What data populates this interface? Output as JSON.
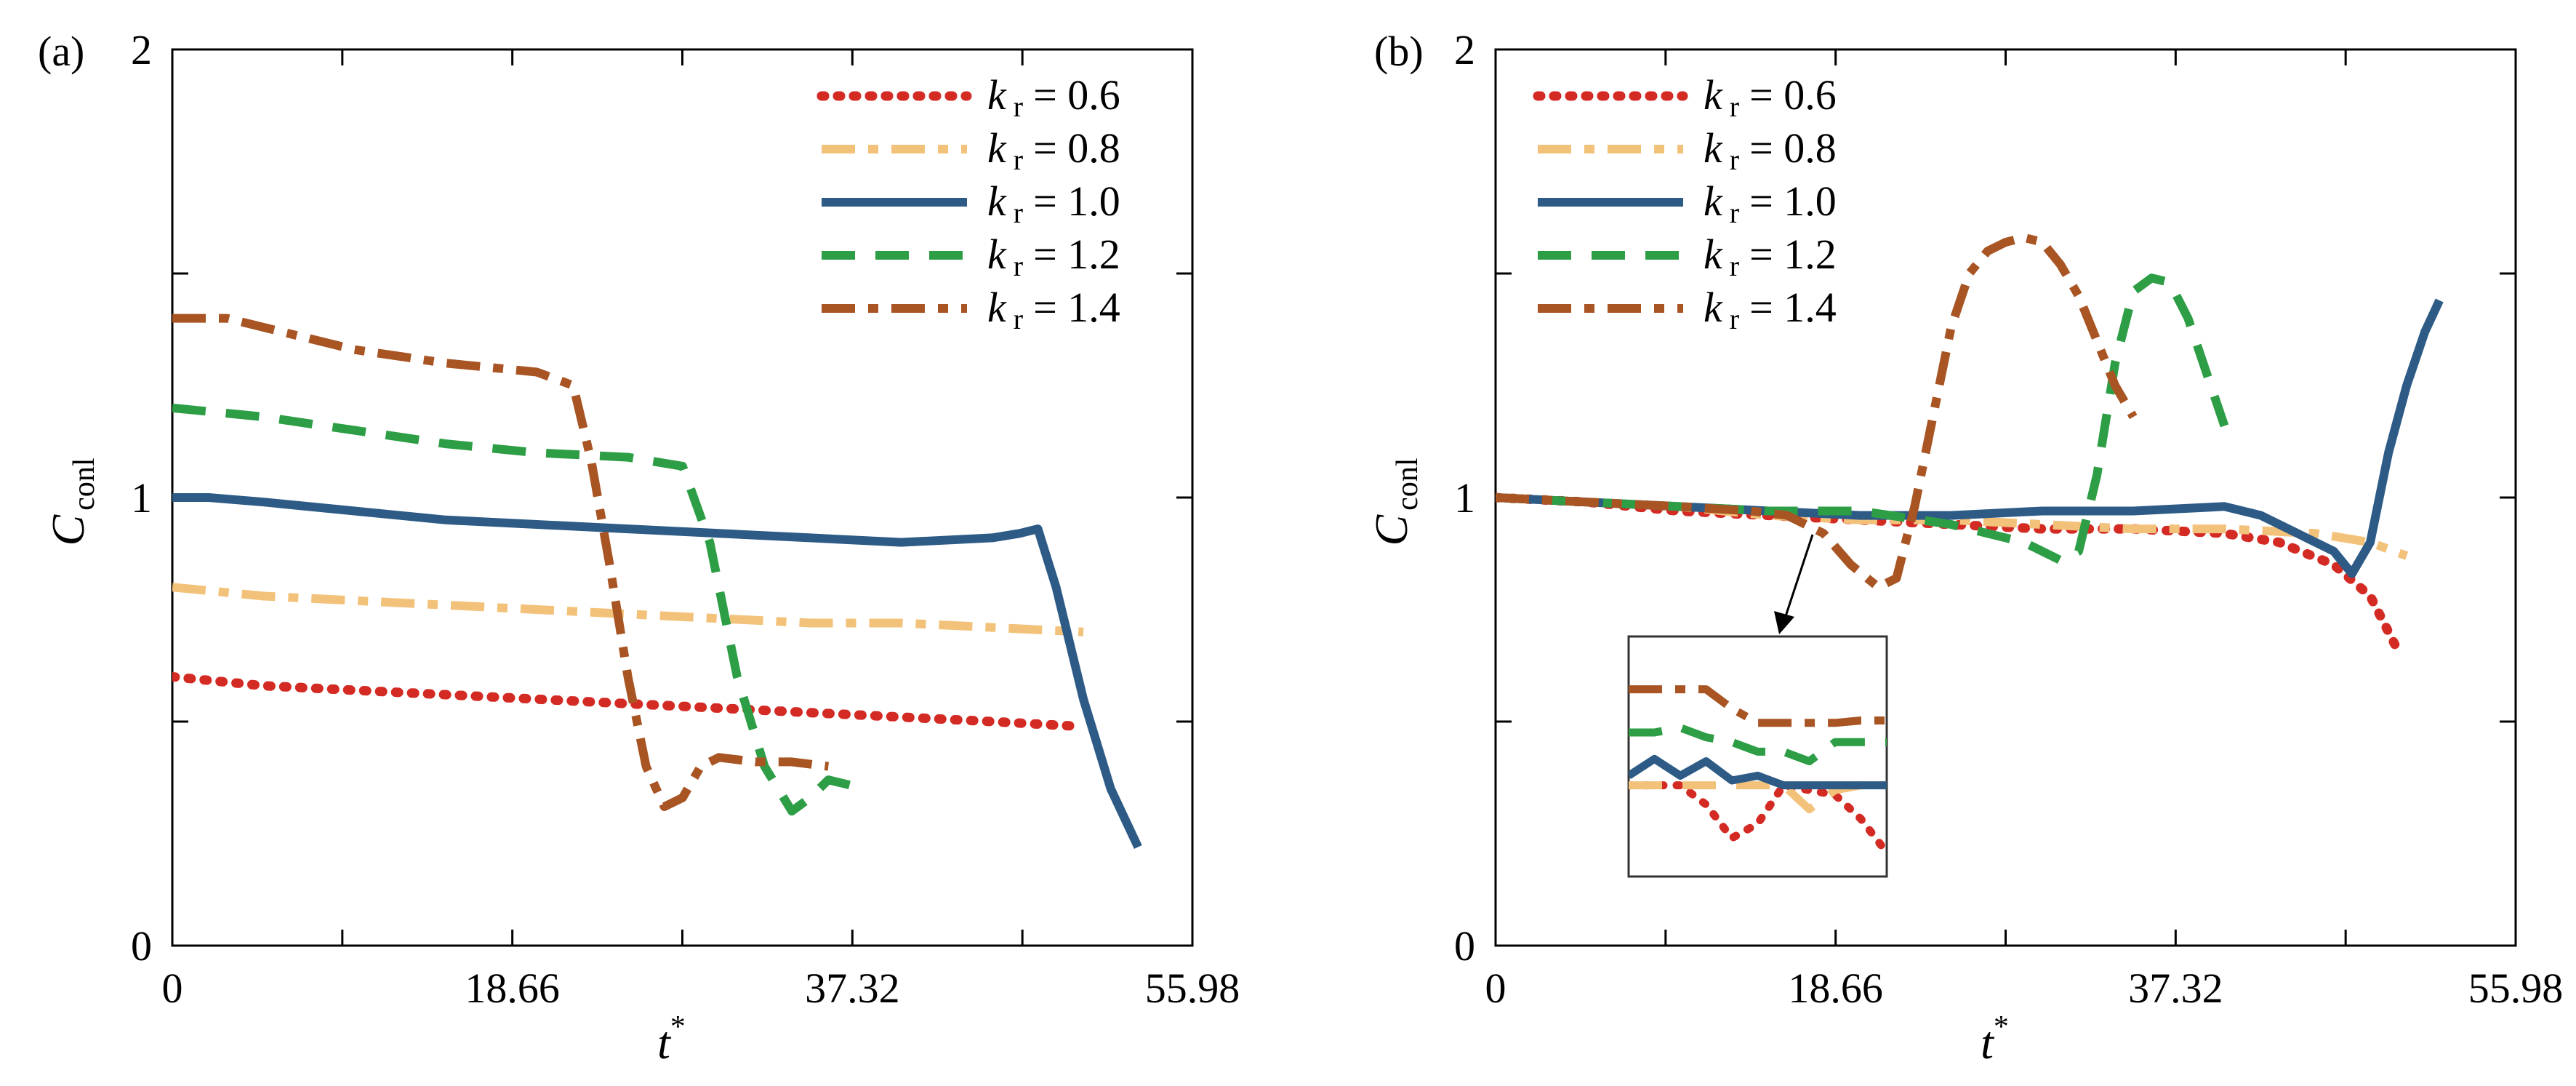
{
  "chart_data": [
    {
      "panel_label": "(a)",
      "type": "line",
      "xlabel": "t",
      "xlabel_sup": "*",
      "ylabel": "C",
      "ylabel_sub": "conl",
      "xlim": [
        0,
        55.98
      ],
      "ylim": [
        0,
        2
      ],
      "xticks": [
        0,
        18.66,
        37.32,
        55.98
      ],
      "xtick_labels": [
        "0",
        "18.66",
        "37.32",
        "55.98"
      ],
      "yticks": [
        0,
        1,
        2
      ],
      "ytick_labels": [
        "0",
        "1",
        "2"
      ],
      "legend_position": "top-right",
      "series": [
        {
          "name": "k r = 0.6",
          "legend": {
            "k": "k",
            "sub": "r",
            "rest": "= 0.6"
          },
          "color": "#d42a24",
          "style": "dotted",
          "x": [
            0,
            5,
            10,
            15,
            20,
            25,
            30,
            35,
            40,
            45,
            49.5
          ],
          "y": [
            0.6,
            0.58,
            0.57,
            0.56,
            0.55,
            0.54,
            0.53,
            0.52,
            0.51,
            0.5,
            0.49
          ]
        },
        {
          "name": "k r = 0.8",
          "legend": {
            "k": "k",
            "sub": "r",
            "rest": "= 0.8"
          },
          "color": "#f3c27a",
          "style": "dashdot",
          "x": [
            0,
            5,
            10,
            15,
            20,
            25,
            30,
            35,
            40,
            45,
            50
          ],
          "y": [
            0.8,
            0.78,
            0.77,
            0.76,
            0.75,
            0.74,
            0.73,
            0.72,
            0.72,
            0.71,
            0.7
          ]
        },
        {
          "name": "k r = 1.0",
          "legend": {
            "k": "k",
            "sub": "r",
            "rest": "= 1.0"
          },
          "color": "#2d5b86",
          "style": "solid",
          "x": [
            0,
            2,
            5,
            10,
            15,
            20,
            25,
            30,
            35,
            40,
            45,
            46.5,
            47.5,
            48.5,
            50,
            51.5,
            53
          ],
          "y": [
            1.0,
            1.0,
            0.99,
            0.97,
            0.95,
            0.94,
            0.93,
            0.92,
            0.91,
            0.9,
            0.91,
            0.92,
            0.93,
            0.8,
            0.55,
            0.35,
            0.22
          ]
        },
        {
          "name": "k r = 1.2",
          "legend": {
            "k": "k",
            "sub": "r",
            "rest": "= 1.2"
          },
          "color": "#2e9e46",
          "style": "dashed",
          "x": [
            0,
            5,
            10,
            15,
            20,
            25,
            28,
            29.5,
            31,
            32.5,
            34,
            35,
            36,
            37,
            38
          ],
          "y": [
            1.2,
            1.18,
            1.15,
            1.12,
            1.1,
            1.09,
            1.07,
            0.9,
            0.6,
            0.4,
            0.3,
            0.33,
            0.37,
            0.36,
            0.35
          ]
        },
        {
          "name": "k r = 1.4",
          "legend": {
            "k": "k",
            "sub": "r",
            "rest": "= 1.4"
          },
          "color": "#a85423",
          "style": "dashdot",
          "x": [
            0,
            3,
            5,
            10,
            15,
            20,
            22,
            23,
            24,
            25,
            26,
            27,
            28,
            29,
            30,
            32,
            34,
            36
          ],
          "y": [
            1.4,
            1.4,
            1.38,
            1.33,
            1.3,
            1.28,
            1.25,
            1.08,
            0.85,
            0.6,
            0.4,
            0.31,
            0.33,
            0.4,
            0.42,
            0.41,
            0.41,
            0.4
          ]
        }
      ]
    },
    {
      "panel_label": "(b)",
      "type": "line",
      "xlabel": "t",
      "xlabel_sup": "*",
      "ylabel": "C",
      "ylabel_sub": "conl",
      "xlim": [
        0,
        55.98
      ],
      "ylim": [
        0,
        2
      ],
      "xticks": [
        0,
        18.66,
        37.32,
        55.98
      ],
      "xtick_labels": [
        "0",
        "18.66",
        "37.32",
        "55.98"
      ],
      "yticks": [
        0,
        1,
        2
      ],
      "ytick_labels": [
        "0",
        "1",
        "2"
      ],
      "legend_position": "top-left",
      "series": [
        {
          "name": "k r = 0.6",
          "legend": {
            "k": "k",
            "sub": "r",
            "rest": "= 0.6"
          },
          "color": "#d42a24",
          "style": "dotted",
          "x": [
            0,
            5,
            10,
            15,
            20,
            25,
            30,
            35,
            40,
            43,
            46,
            48,
            49.5
          ],
          "y": [
            1.0,
            0.99,
            0.97,
            0.96,
            0.95,
            0.94,
            0.93,
            0.93,
            0.92,
            0.9,
            0.85,
            0.78,
            0.66
          ]
        },
        {
          "name": "k r = 0.8",
          "legend": {
            "k": "k",
            "sub": "r",
            "rest": "= 0.8"
          },
          "color": "#f3c27a",
          "style": "dashdot",
          "x": [
            0,
            5,
            10,
            15,
            20,
            25,
            30,
            35,
            40,
            45,
            48,
            50
          ],
          "y": [
            1.0,
            0.99,
            0.98,
            0.96,
            0.95,
            0.95,
            0.94,
            0.93,
            0.93,
            0.92,
            0.9,
            0.87
          ]
        },
        {
          "name": "k r = 1.0",
          "legend": {
            "k": "k",
            "sub": "r",
            "rest": "= 1.0"
          },
          "color": "#2d5b86",
          "style": "solid",
          "x": [
            0,
            5,
            10,
            15,
            20,
            25,
            30,
            35,
            40,
            42,
            44,
            46,
            47,
            48,
            49,
            50,
            51,
            51.8
          ],
          "y": [
            1.0,
            0.99,
            0.98,
            0.97,
            0.96,
            0.96,
            0.97,
            0.97,
            0.98,
            0.96,
            0.92,
            0.88,
            0.83,
            0.9,
            1.1,
            1.25,
            1.37,
            1.44
          ]
        },
        {
          "name": "k r = 1.2",
          "legend": {
            "k": "k",
            "sub": "r",
            "rest": "= 1.2"
          },
          "color": "#2e9e46",
          "style": "dashed",
          "x": [
            0,
            5,
            10,
            15,
            20,
            25,
            29,
            31,
            32,
            33,
            34,
            35,
            36,
            37,
            38,
            39,
            40
          ],
          "y": [
            1.0,
            0.99,
            0.98,
            0.97,
            0.97,
            0.94,
            0.9,
            0.86,
            0.88,
            1.05,
            1.3,
            1.46,
            1.49,
            1.48,
            1.4,
            1.28,
            1.16
          ]
        },
        {
          "name": "k r = 1.4",
          "legend": {
            "k": "k",
            "sub": "r",
            "rest": "= 1.4"
          },
          "color": "#a85423",
          "style": "dashdot",
          "x": [
            0,
            5,
            10,
            14,
            16,
            18,
            19.5,
            21,
            22,
            23,
            24,
            25,
            26,
            27,
            28,
            29,
            30,
            31,
            32,
            33,
            34,
            35
          ],
          "y": [
            1.0,
            0.99,
            0.98,
            0.97,
            0.96,
            0.92,
            0.85,
            0.8,
            0.82,
            0.98,
            1.18,
            1.38,
            1.5,
            1.55,
            1.57,
            1.58,
            1.57,
            1.52,
            1.45,
            1.35,
            1.25,
            1.18
          ]
        }
      ],
      "inset": {
        "arrow": true,
        "series": [
          {
            "name": "k r = 0.6",
            "color": "#d42a24",
            "style": "dotted",
            "x": [
              0,
              0.1,
              0.2,
              0.3,
              0.4,
              0.5,
              0.6,
              0.7,
              0.8,
              0.9,
              1.0
            ],
            "y": [
              0.38,
              0.38,
              0.38,
              0.3,
              0.16,
              0.22,
              0.38,
              0.36,
              0.34,
              0.24,
              0.1
            ]
          },
          {
            "name": "k r = 0.8",
            "color": "#f3c27a",
            "style": "dashed",
            "x": [
              0,
              0.1,
              0.2,
              0.3,
              0.4,
              0.5,
              0.6,
              0.7,
              0.8,
              0.9,
              1.0
            ],
            "y": [
              0.38,
              0.38,
              0.38,
              0.38,
              0.38,
              0.38,
              0.38,
              0.28,
              0.36,
              0.38,
              0.38
            ]
          },
          {
            "name": "k r = 1.0",
            "color": "#2d5b86",
            "style": "solid",
            "x": [
              0,
              0.1,
              0.2,
              0.3,
              0.4,
              0.5,
              0.6,
              0.7,
              0.8,
              0.9,
              1.0
            ],
            "y": [
              0.42,
              0.49,
              0.42,
              0.48,
              0.4,
              0.42,
              0.38,
              0.38,
              0.38,
              0.38,
              0.38
            ]
          },
          {
            "name": "k r = 1.2",
            "color": "#2e9e46",
            "style": "dashed",
            "x": [
              0,
              0.1,
              0.2,
              0.3,
              0.4,
              0.5,
              0.6,
              0.7,
              0.8,
              0.9,
              1.0
            ],
            "y": [
              0.6,
              0.6,
              0.62,
              0.58,
              0.56,
              0.52,
              0.52,
              0.48,
              0.56,
              0.56,
              0.56
            ]
          },
          {
            "name": "k r = 1.4",
            "color": "#a85423",
            "style": "dashdot",
            "x": [
              0,
              0.1,
              0.2,
              0.3,
              0.4,
              0.5,
              0.6,
              0.7,
              0.8,
              0.9,
              1.0
            ],
            "y": [
              0.78,
              0.78,
              0.78,
              0.78,
              0.7,
              0.64,
              0.64,
              0.64,
              0.64,
              0.65,
              0.65
            ]
          }
        ]
      }
    }
  ]
}
